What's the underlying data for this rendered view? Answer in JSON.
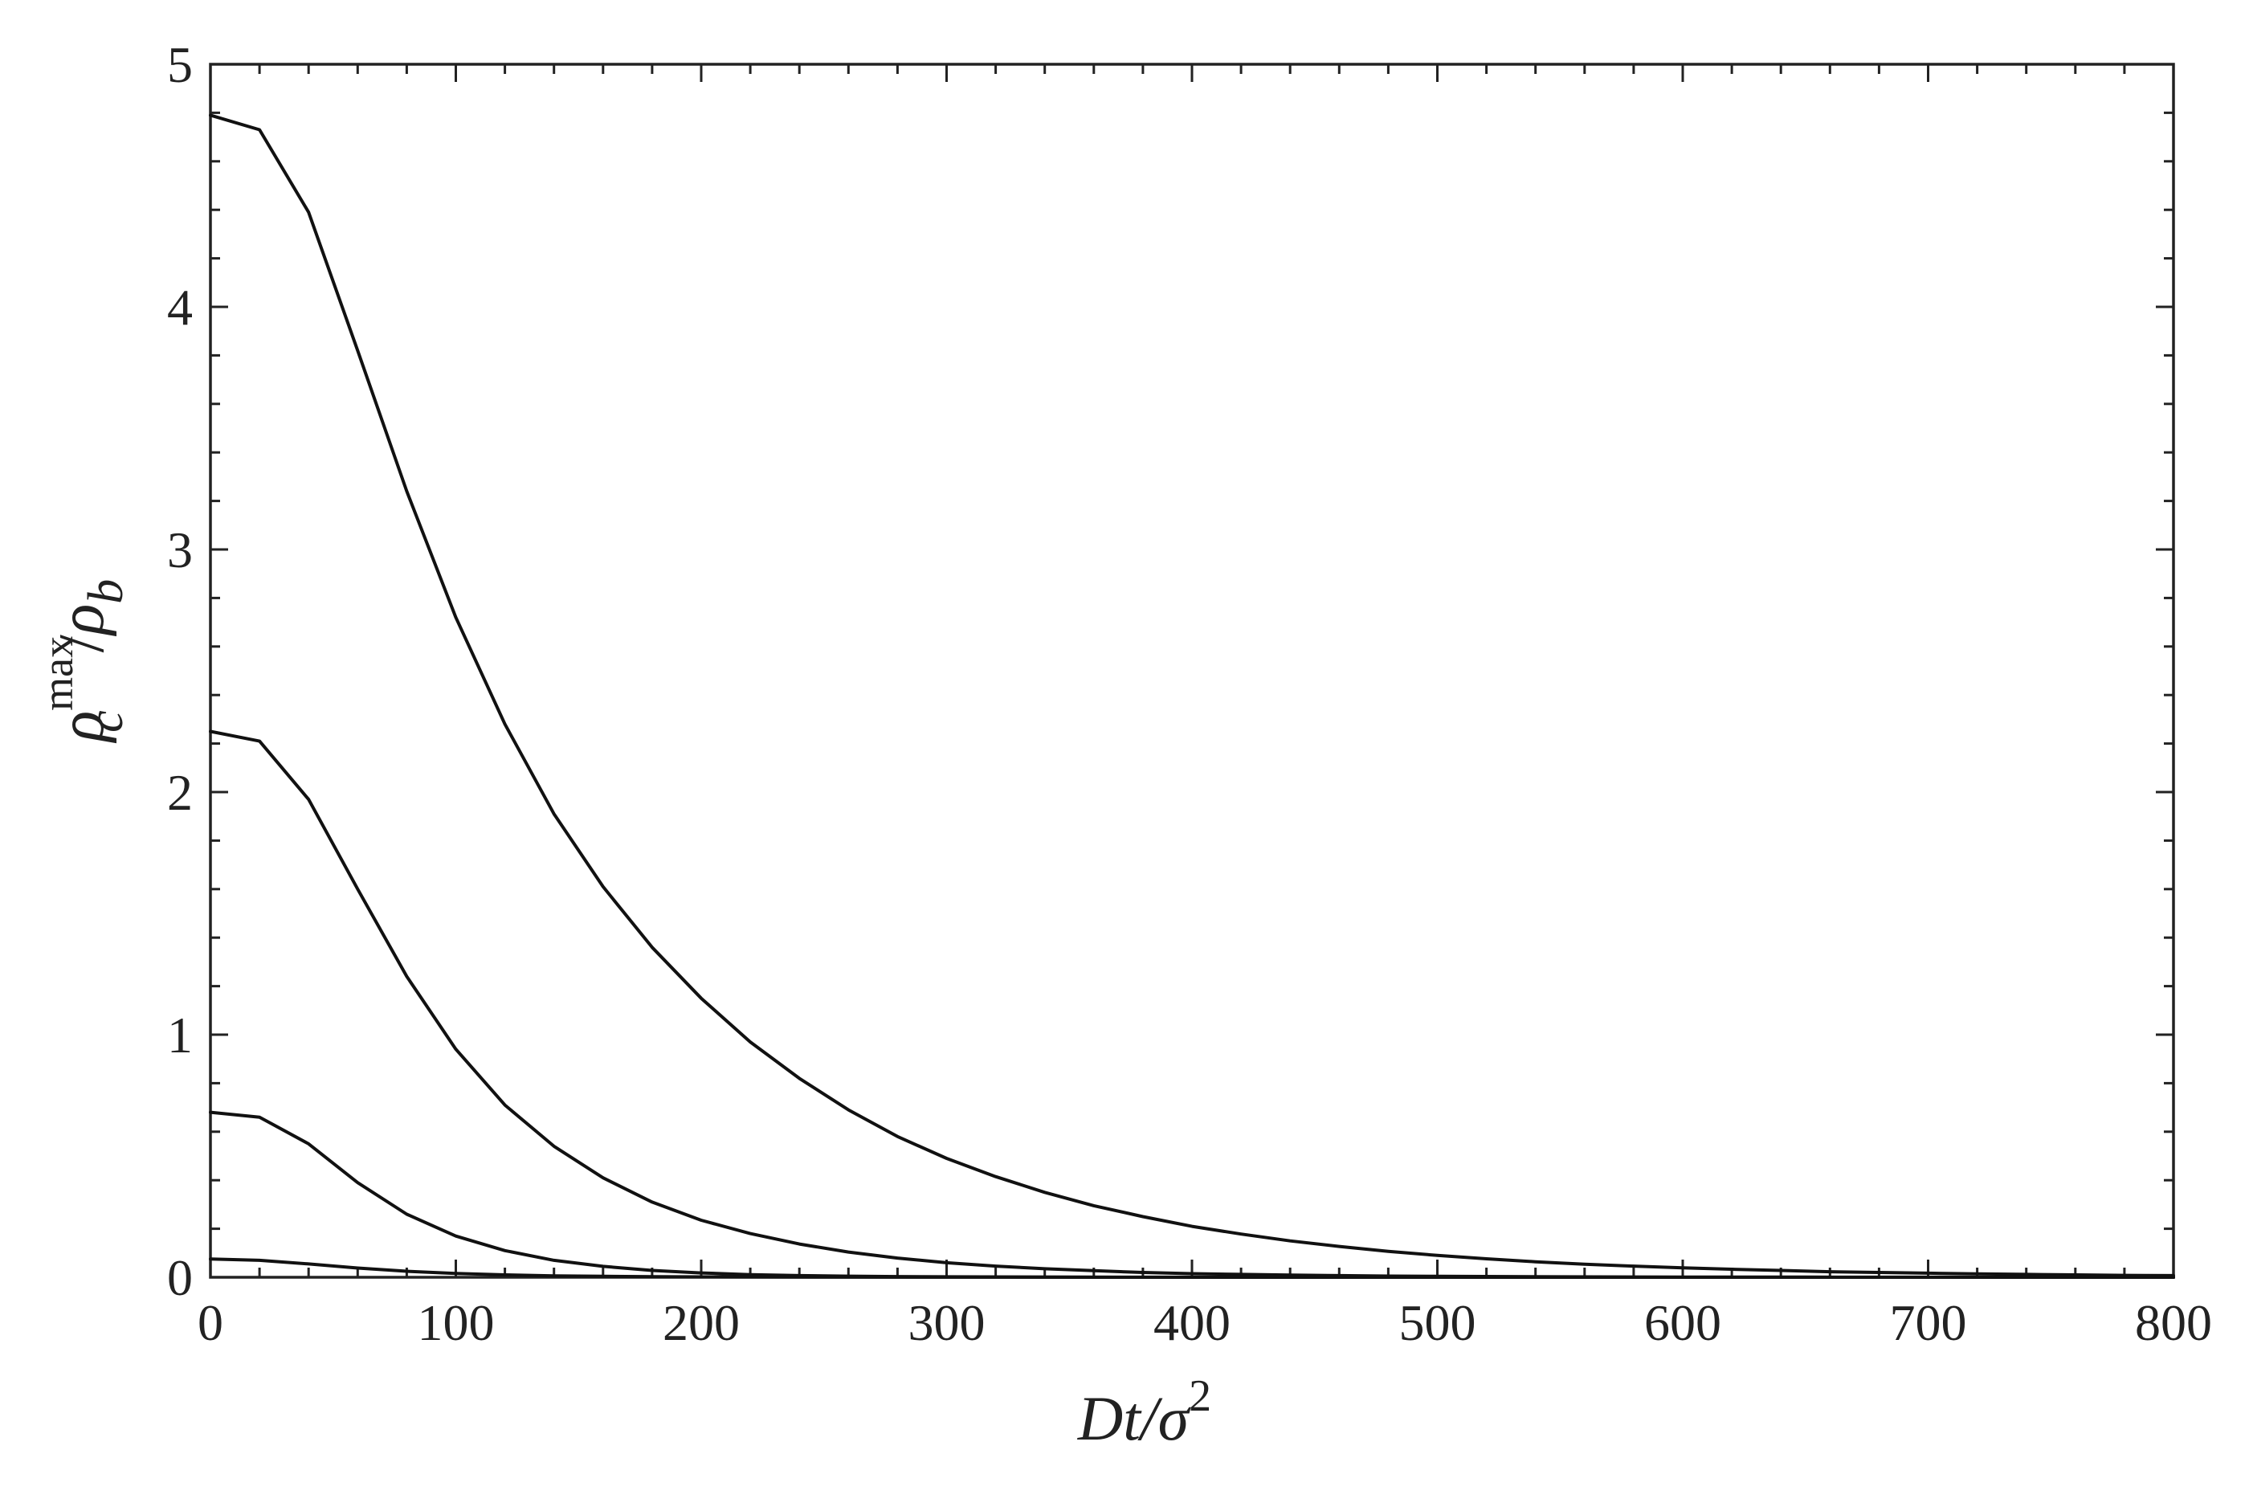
{
  "chart_data": {
    "type": "line",
    "title": "",
    "xlabel": {
      "prefix": "Dt/σ",
      "sup": "2"
    },
    "ylabel": {
      "rho1": "ρ",
      "sub1": "c",
      "sup1": "max",
      "slash": "/",
      "rho2": "ρ",
      "sub2": "b"
    },
    "xlim": [
      0,
      800
    ],
    "ylim": [
      0,
      5
    ],
    "x_ticks": [
      0,
      100,
      200,
      300,
      400,
      500,
      600,
      700,
      800
    ],
    "x_tick_labels": [
      "0",
      "100",
      "200",
      "300",
      "400",
      "500",
      "600",
      "700",
      "800"
    ],
    "y_ticks": [
      0,
      1,
      2,
      3,
      4,
      5
    ],
    "y_tick_labels": [
      "0",
      "1",
      "2",
      "3",
      "4",
      "5"
    ],
    "x_minor_step": 20,
    "y_minor_step": 0.2,
    "grid": false,
    "series": [
      {
        "x": [
          0,
          20,
          40,
          60,
          80,
          100,
          120,
          140,
          160,
          180,
          200,
          220,
          240,
          260,
          280,
          300,
          320,
          340,
          360,
          380,
          400,
          420,
          440,
          460,
          480,
          500,
          520,
          540,
          560,
          580,
          600,
          620,
          640,
          660,
          680,
          700,
          720,
          740,
          760,
          780,
          800
        ],
        "values": [
          4.79,
          4.73,
          4.39,
          3.82,
          3.24,
          2.72,
          2.28,
          1.91,
          1.61,
          1.36,
          1.15,
          0.97,
          0.82,
          0.69,
          0.58,
          0.49,
          0.415,
          0.35,
          0.295,
          0.25,
          0.21,
          0.178,
          0.15,
          0.127,
          0.107,
          0.09,
          0.076,
          0.064,
          0.054,
          0.046,
          0.039,
          0.033,
          0.028,
          0.023,
          0.02,
          0.017,
          0.014,
          0.012,
          0.01,
          0.008,
          0.007
        ]
      },
      {
        "x": [
          0,
          20,
          40,
          60,
          80,
          100,
          120,
          140,
          160,
          180,
          200,
          220,
          240,
          260,
          280,
          300,
          320,
          340,
          360,
          380,
          400,
          420,
          440,
          460,
          480,
          500,
          550,
          600,
          650,
          700,
          750,
          800
        ],
        "values": [
          2.25,
          2.21,
          1.97,
          1.6,
          1.24,
          0.94,
          0.71,
          0.54,
          0.41,
          0.31,
          0.235,
          0.18,
          0.137,
          0.104,
          0.079,
          0.06,
          0.046,
          0.035,
          0.027,
          0.02,
          0.015,
          0.012,
          0.009,
          0.007,
          0.005,
          0.004,
          0.002,
          0.001,
          0.0005,
          0.0003,
          0.0002,
          0.0001
        ]
      },
      {
        "x": [
          0,
          20,
          40,
          60,
          80,
          100,
          120,
          140,
          160,
          180,
          200,
          220,
          240,
          260,
          280,
          300,
          350,
          400,
          500,
          600,
          700,
          800
        ],
        "values": [
          0.68,
          0.66,
          0.55,
          0.39,
          0.26,
          0.17,
          0.11,
          0.07,
          0.045,
          0.028,
          0.018,
          0.011,
          0.007,
          0.0045,
          0.003,
          0.002,
          0.0007,
          0.0003,
          0.0001,
          0.0,
          0.0,
          0.0
        ]
      },
      {
        "x": [
          0,
          20,
          40,
          60,
          80,
          100,
          120,
          140,
          160,
          180,
          200,
          250,
          300,
          400,
          500,
          600,
          700,
          800
        ],
        "values": [
          0.075,
          0.07,
          0.055,
          0.038,
          0.025,
          0.016,
          0.01,
          0.006,
          0.004,
          0.0025,
          0.0015,
          0.0005,
          0.0002,
          0.0,
          0.0,
          0.0,
          0.0,
          0.0
        ]
      }
    ]
  }
}
